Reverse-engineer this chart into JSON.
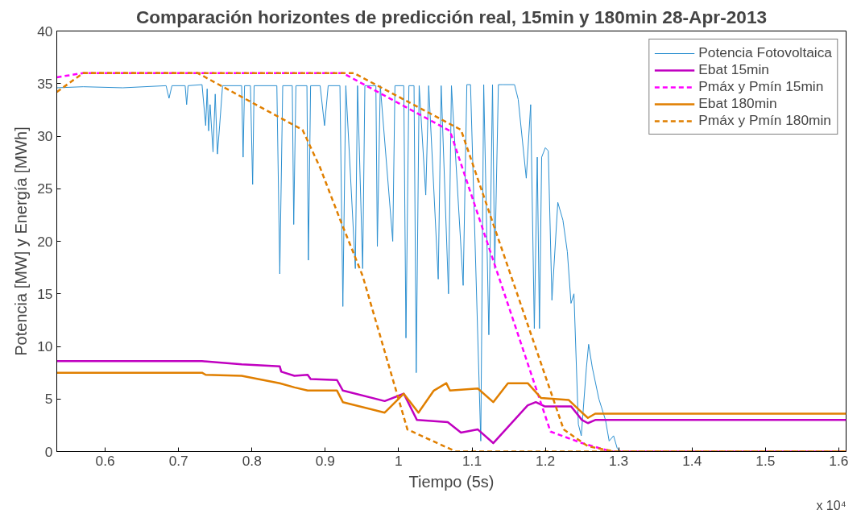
{
  "chart_data": {
    "type": "line",
    "title": "Comparación horizontes de predicción real, 15min y 180min 28-Apr-2013",
    "xlabel": "Tiempo (5s)",
    "ylabel": "Potencia [MW] y Energía [MWh]",
    "annotations": [
      "x 10⁴"
    ],
    "xlim": [
      0.534,
      1.61
    ],
    "xticks": [
      0.6,
      0.7,
      0.8,
      0.9,
      1,
      1.1,
      1.2,
      1.3,
      1.4,
      1.5,
      1.6
    ],
    "ylim": [
      0,
      40
    ],
    "yticks": [
      0,
      5,
      10,
      15,
      20,
      25,
      30,
      35,
      40
    ],
    "grid": false,
    "legend": "top right",
    "marker": "none",
    "series": [
      {
        "name": "Potencia Fotovoltaica",
        "color": "#2b8fd0",
        "line_style": "solid",
        "x": [
          0.534,
          0.57,
          0.624,
          0.683,
          0.687,
          0.691,
          0.709,
          0.711,
          0.713,
          0.732,
          0.737,
          0.739,
          0.741,
          0.743,
          0.747,
          0.75,
          0.753,
          0.756,
          0.76,
          0.786,
          0.788,
          0.79,
          0.798,
          0.801,
          0.803,
          0.834,
          0.838,
          0.842,
          0.855,
          0.857,
          0.86,
          0.875,
          0.877,
          0.88,
          0.893,
          0.899,
          0.904,
          0.92,
          0.924,
          0.928,
          0.941,
          0.944,
          0.951,
          0.954,
          0.969,
          0.971,
          0.975,
          0.992,
          0.995,
          1.007,
          1.01,
          1.014,
          1.021,
          1.024,
          1.028,
          1.037,
          1.041,
          1.054,
          1.058,
          1.068,
          1.072,
          1.088,
          1.093,
          1.098,
          1.112,
          1.116,
          1.123,
          1.128,
          1.131,
          1.136,
          1.142,
          1.158,
          1.163,
          1.174,
          1.18,
          1.185,
          1.189,
          1.192,
          1.195,
          1.2,
          1.204,
          1.209,
          1.217,
          1.224,
          1.23,
          1.235,
          1.239,
          1.245,
          1.249,
          1.256,
          1.259,
          1.264,
          1.273,
          1.282,
          1.287,
          1.293,
          1.298,
          1.303,
          1.61
        ],
        "values": [
          34.6,
          34.7,
          34.6,
          34.8,
          33.6,
          34.8,
          34.8,
          33,
          34.8,
          34.9,
          31,
          34.5,
          30.5,
          33,
          28.5,
          34,
          28.3,
          31,
          34.8,
          34.8,
          28,
          34.8,
          34.8,
          25.4,
          34.8,
          34.8,
          16.9,
          34.8,
          34.8,
          21.6,
          34.8,
          34.8,
          18.2,
          34.8,
          34.8,
          31,
          34.8,
          34.8,
          13.8,
          34.8,
          17.4,
          34.8,
          17.4,
          34.8,
          34.8,
          19.5,
          34.8,
          20,
          34.8,
          34.8,
          10.8,
          34.8,
          34.8,
          7.5,
          34.8,
          24.4,
          34.8,
          16.4,
          34.8,
          15,
          34.8,
          15.8,
          34.9,
          34.9,
          1,
          34.9,
          11.1,
          34.9,
          17.4,
          34.9,
          34.9,
          34.9,
          33.5,
          26,
          33,
          11.7,
          28,
          11.7,
          28,
          28.9,
          28.6,
          14.4,
          23.7,
          22,
          19,
          14.1,
          15,
          2.6,
          1.5,
          8,
          10.2,
          8,
          5,
          3,
          1,
          1.5,
          0.3,
          0,
          0
        ]
      },
      {
        "name": "Ebat 15min",
        "color": "#c000c0",
        "line_style": "solid",
        "x": [
          0.534,
          0.732,
          0.786,
          0.838,
          0.84,
          0.858,
          0.876,
          0.88,
          0.916,
          0.924,
          0.981,
          1.007,
          1.025,
          1.067,
          1.085,
          1.108,
          1.129,
          1.176,
          1.187,
          1.199,
          1.235,
          1.25,
          1.258,
          1.268,
          1.61
        ],
        "values": [
          8.6,
          8.6,
          8.3,
          8.1,
          7.6,
          7.2,
          7.3,
          6.9,
          6.8,
          5.8,
          4.8,
          5.5,
          3.0,
          2.8,
          1.8,
          2.1,
          0.8,
          4.4,
          4.7,
          4.3,
          4.3,
          3.0,
          2.7,
          3.0,
          3.0
        ]
      },
      {
        "name": "Pmáx y Pmín 15min",
        "color": "#ff00ff",
        "line_style": "dashed",
        "x": [
          0.534,
          0.57,
          0.924,
          1.07,
          1.207,
          1.25,
          1.29,
          1.61
        ],
        "values": [
          35.6,
          36,
          36,
          30.5,
          1.9,
          0.8,
          0,
          0
        ]
      },
      {
        "name": "Ebat 180min",
        "color": "#e07f00",
        "line_style": "solid",
        "x": [
          0.534,
          0.732,
          0.737,
          0.786,
          0.838,
          0.858,
          0.876,
          0.916,
          0.924,
          0.981,
          1.007,
          1.027,
          1.048,
          1.065,
          1.07,
          1.108,
          1.129,
          1.149,
          1.176,
          1.194,
          1.232,
          1.25,
          1.258,
          1.268,
          1.61
        ],
        "values": [
          7.5,
          7.5,
          7.3,
          7.2,
          6.5,
          6.1,
          5.8,
          5.8,
          4.7,
          3.7,
          5.5,
          3.7,
          5.8,
          6.5,
          5.8,
          6.0,
          4.7,
          6.5,
          6.5,
          5.1,
          4.9,
          3.7,
          3.2,
          3.6,
          3.6
        ]
      },
      {
        "name": "Pmáx y Pmín 180min",
        "color": "#e07f00",
        "line_style": "dashed",
        "x": [
          0.534,
          0.57,
          0.939,
          1.085,
          1.225,
          1.258,
          1.295,
          1.61
        ],
        "values": [
          34.2,
          36,
          36,
          30.6,
          2.1,
          0.5,
          0,
          0
        ]
      },
      {
        "color": "#e07f00",
        "line_style": "dashed",
        "x": [
          0.57,
          0.726,
          0.869,
          0.893,
          0.92,
          0.951,
          1.012,
          1.078,
          1.61
        ],
        "values": [
          36,
          36,
          30.6,
          27,
          22.1,
          16.7,
          2.1,
          0,
          0
        ]
      }
    ]
  }
}
